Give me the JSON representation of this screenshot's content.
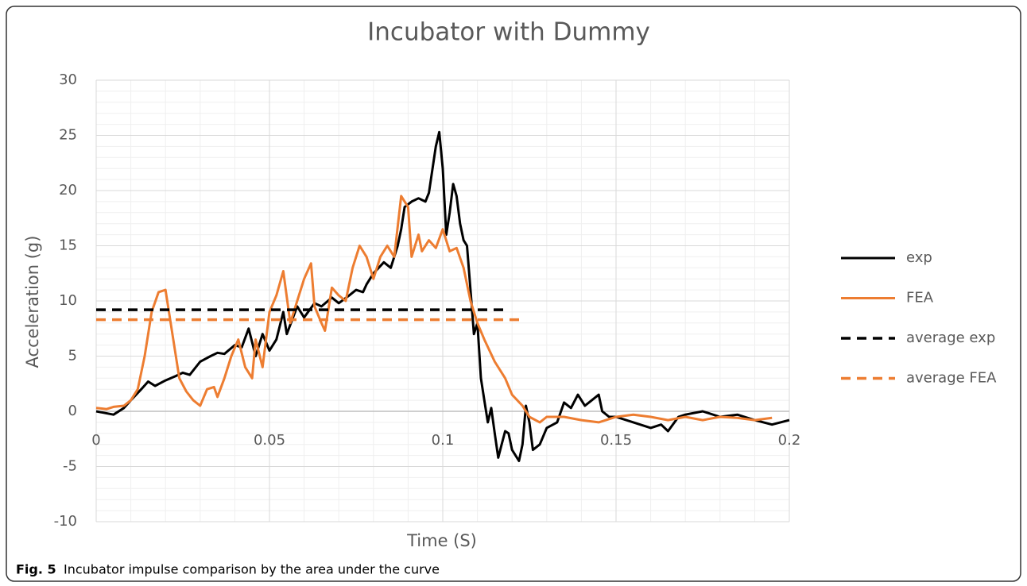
{
  "chart_data": {
    "type": "line",
    "title": "Incubator with Dummy",
    "xlabel": "Time (S)",
    "ylabel": "Acceleration (g)",
    "caption_label": "Fig. 5",
    "caption": "Incubator impulse comparison by the area under the curve",
    "xlim": [
      0,
      0.2
    ],
    "xticks": [
      0,
      0.05,
      0.1,
      0.15,
      0.2
    ],
    "ylim": [
      -10,
      30
    ],
    "yticks": [
      -10,
      -5,
      0,
      5,
      10,
      15,
      20,
      25,
      30
    ],
    "grid": true,
    "minor_grid": true,
    "legend": "right",
    "series": [
      {
        "name": "exp",
        "color": "#000000",
        "dash": false,
        "x": [
          0,
          0.005,
          0.008,
          0.01,
          0.013,
          0.015,
          0.017,
          0.02,
          0.023,
          0.025,
          0.027,
          0.03,
          0.033,
          0.035,
          0.037,
          0.04,
          0.042,
          0.044,
          0.046,
          0.048,
          0.05,
          0.052,
          0.054,
          0.055,
          0.058,
          0.06,
          0.063,
          0.065,
          0.068,
          0.07,
          0.073,
          0.075,
          0.077,
          0.078,
          0.08,
          0.083,
          0.085,
          0.087,
          0.088,
          0.089,
          0.091,
          0.093,
          0.095,
          0.096,
          0.098,
          0.099,
          0.1,
          0.101,
          0.102,
          0.103,
          0.104,
          0.105,
          0.106,
          0.107,
          0.108,
          0.109,
          0.11,
          0.111,
          0.112,
          0.113,
          0.114,
          0.115,
          0.116,
          0.117,
          0.118,
          0.119,
          0.12,
          0.122,
          0.123,
          0.124,
          0.125,
          0.126,
          0.128,
          0.13,
          0.133,
          0.135,
          0.137,
          0.139,
          0.141,
          0.143,
          0.145,
          0.146,
          0.148,
          0.15,
          0.155,
          0.16,
          0.163,
          0.165,
          0.168,
          0.17,
          0.175,
          0.18,
          0.185,
          0.19,
          0.195,
          0.2
        ],
        "values": [
          0,
          -0.3,
          0.3,
          1,
          2,
          2.7,
          2.3,
          2.8,
          3.2,
          3.5,
          3.3,
          4.5,
          5,
          5.3,
          5.2,
          6,
          5.8,
          7.5,
          5,
          7,
          5.5,
          6.5,
          9,
          7,
          9.5,
          8.5,
          9.8,
          9.5,
          10.3,
          9.8,
          10.5,
          11,
          10.8,
          11.5,
          12.5,
          13.5,
          13,
          15,
          16.5,
          18.5,
          19,
          19.3,
          19,
          19.8,
          24,
          25.3,
          22,
          16,
          18,
          20.6,
          19.5,
          17,
          15.5,
          15,
          11,
          7,
          8,
          3,
          1,
          -1,
          0.3,
          -2,
          -4.2,
          -3,
          -1.8,
          -2,
          -3.5,
          -4.5,
          -3,
          0.5,
          -1,
          -3.5,
          -3,
          -1.5,
          -1,
          0.8,
          0.3,
          1.5,
          0.5,
          1,
          1.5,
          0,
          -0.5,
          -0.5,
          -1,
          -1.5,
          -1.2,
          -1.8,
          -0.5,
          -0.3,
          0,
          -0.5,
          -0.3,
          -0.8,
          -1.2,
          -0.8
        ]
      },
      {
        "name": "FEA",
        "color": "#ed7d31",
        "dash": false,
        "x": [
          0,
          0.003,
          0.005,
          0.008,
          0.01,
          0.012,
          0.014,
          0.016,
          0.018,
          0.02,
          0.022,
          0.024,
          0.026,
          0.028,
          0.03,
          0.032,
          0.034,
          0.035,
          0.037,
          0.039,
          0.041,
          0.043,
          0.045,
          0.046,
          0.048,
          0.05,
          0.052,
          0.054,
          0.056,
          0.058,
          0.06,
          0.062,
          0.063,
          0.065,
          0.066,
          0.068,
          0.07,
          0.072,
          0.074,
          0.076,
          0.078,
          0.08,
          0.082,
          0.084,
          0.086,
          0.088,
          0.09,
          0.091,
          0.093,
          0.094,
          0.096,
          0.098,
          0.1,
          0.102,
          0.104,
          0.106,
          0.108,
          0.11,
          0.112,
          0.115,
          0.118,
          0.12,
          0.123,
          0.125,
          0.128,
          0.13,
          0.135,
          0.14,
          0.145,
          0.15,
          0.155,
          0.16,
          0.165,
          0.17,
          0.175,
          0.18,
          0.185,
          0.19,
          0.195
        ],
        "values": [
          0.3,
          0.2,
          0.4,
          0.5,
          1,
          2,
          5,
          9,
          10.8,
          11,
          7,
          3,
          1.8,
          1,
          0.5,
          2,
          2.2,
          1.3,
          3,
          5,
          6.5,
          4,
          3,
          6.5,
          4,
          9,
          10.5,
          12.7,
          8,
          10,
          12,
          13.4,
          9.5,
          8,
          7.3,
          11.2,
          10.5,
          10,
          13,
          15,
          14,
          12,
          14,
          15,
          14,
          19.5,
          18.5,
          14,
          16,
          14.5,
          15.5,
          14.8,
          16.5,
          14.5,
          14.8,
          13,
          10,
          8,
          6.5,
          4.5,
          3,
          1.5,
          0.5,
          -0.5,
          -1,
          -0.5,
          -0.5,
          -0.8,
          -1,
          -0.5,
          -0.3,
          -0.5,
          -0.8,
          -0.5,
          -0.8,
          -0.5,
          -0.6,
          -0.8,
          -0.6
        ]
      },
      {
        "name": "average exp",
        "color": "#000000",
        "dash": true,
        "x": [
          0,
          0.1186
        ],
        "values": [
          9.2,
          9.2
        ]
      },
      {
        "name": "average FEA",
        "color": "#ed7d31",
        "dash": true,
        "x": [
          0,
          0.1225
        ],
        "values": [
          8.3,
          8.3
        ]
      }
    ]
  }
}
